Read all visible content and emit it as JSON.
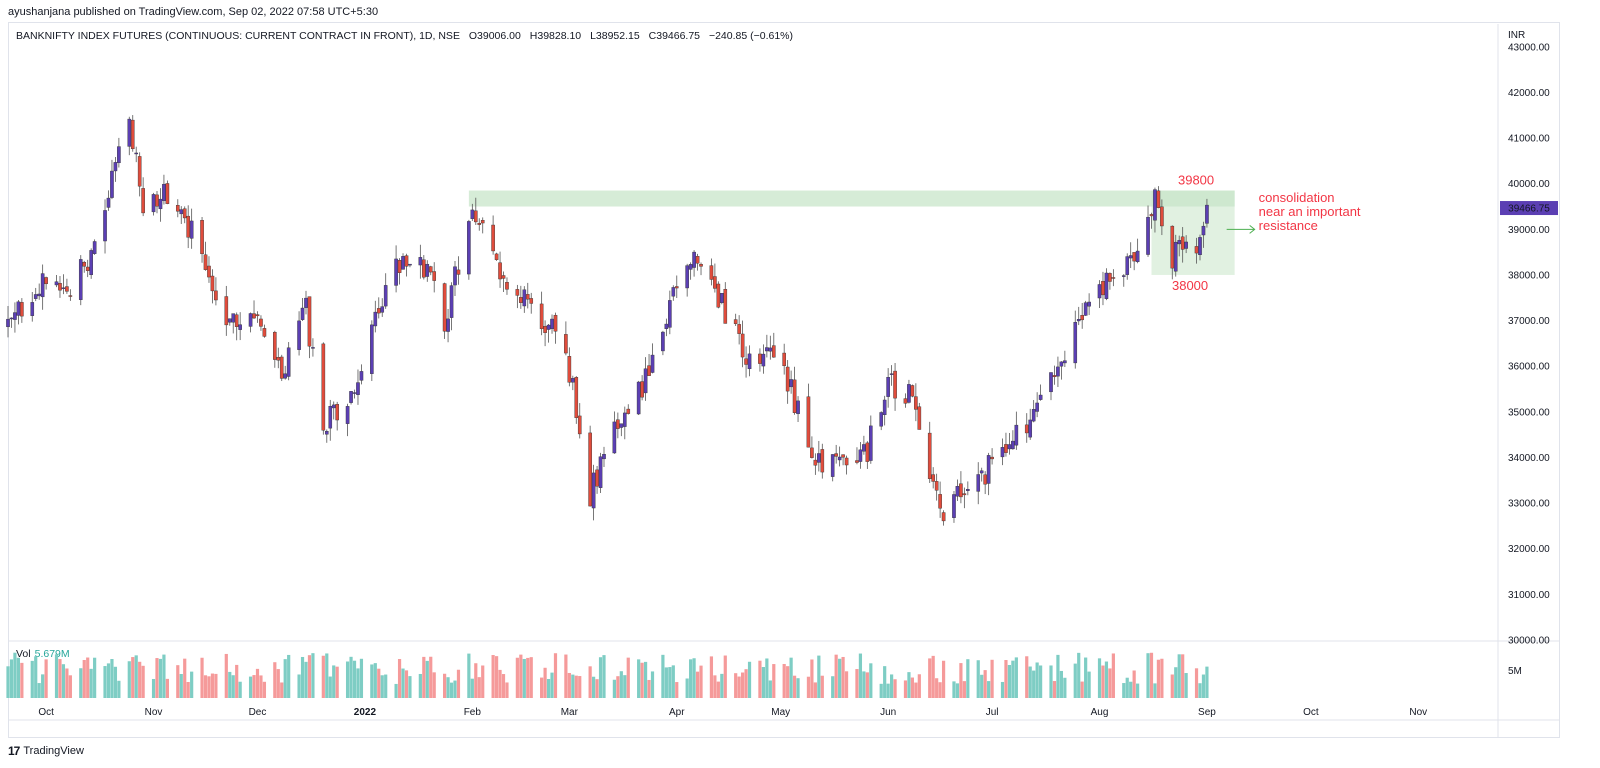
{
  "publisher": "ayushanjana published on TradingView.com, Sep 02, 2022 07:58 UTC+5:30",
  "legend": {
    "symbol": "BANKNIFTY INDEX FUTURES (CONTINUOUS: CURRENT CONTRACT IN FRONT), 1D, NSE",
    "open": "O39006.00",
    "high": "H39828.10",
    "low": "L38952.15",
    "close": "C39466.75",
    "change": "−240.85 (−0.61%)"
  },
  "volume": {
    "label": "Vol",
    "value": "5.679M"
  },
  "footer": {
    "brand": "TradingView"
  },
  "chart_data": {
    "type": "candlestick",
    "currency": "INR",
    "colors": {
      "up": "#5b3fb3",
      "down": "#e04c3c",
      "vol_up": "#7ecdc4",
      "vol_down": "#f59a9a",
      "zone": "#c8e6c9"
    },
    "ylim": [
      30000,
      43500
    ],
    "y_ticks": [
      "30000.00",
      "31000.00",
      "32000.00",
      "33000.00",
      "34000.00",
      "35000.00",
      "36000.00",
      "37000.00",
      "38000.00",
      "39000.00",
      "40000.00",
      "41000.00",
      "42000.00",
      "43000.00"
    ],
    "last_price": "39466.75",
    "vol_tick": "5M",
    "x_ticks": [
      "Oct",
      "Nov",
      "Dec",
      "2022",
      "Feb",
      "Mar",
      "Apr",
      "May",
      "Jun",
      "Jul",
      "Aug",
      "Sep",
      "Oct",
      "Nov"
    ],
    "x_tick_dates": [
      "2021-10-01",
      "2021-11-01",
      "2021-12-01",
      "2022-01-01",
      "2022-02-01",
      "2022-03-01",
      "2022-04-01",
      "2022-05-01",
      "2022-06-01",
      "2022-07-01",
      "2022-08-01",
      "2022-09-01",
      "2022-10-01",
      "2022-11-01"
    ],
    "resistance_zone": {
      "from": 39500,
      "to": 39850,
      "start": "2022-01-31",
      "end": "2022-09-09"
    },
    "consolidation_box": {
      "from": 38000,
      "to": 39850,
      "start": "2022-08-16",
      "end": "2022-09-09"
    },
    "annotations": {
      "top": "39800",
      "bottom": "38000",
      "note": [
        "consolidation",
        "near an important",
        "resistance"
      ]
    },
    "anchors": [
      {
        "date": "2021-09-20",
        "price": 36800
      },
      {
        "date": "2021-09-28",
        "price": 37800
      },
      {
        "date": "2021-10-05",
        "price": 37600
      },
      {
        "date": "2021-10-14",
        "price": 38300
      },
      {
        "date": "2021-10-19",
        "price": 39700
      },
      {
        "date": "2021-10-25",
        "price": 41600
      },
      {
        "date": "2021-10-29",
        "price": 39300
      },
      {
        "date": "2021-11-04",
        "price": 39800
      },
      {
        "date": "2021-11-12",
        "price": 38900
      },
      {
        "date": "2021-11-22",
        "price": 37200
      },
      {
        "date": "2021-11-30",
        "price": 37000
      },
      {
        "date": "2021-12-08",
        "price": 35800
      },
      {
        "date": "2021-12-15",
        "price": 37200
      },
      {
        "date": "2021-12-20",
        "price": 34700
      },
      {
        "date": "2021-12-28",
        "price": 35200
      },
      {
        "date": "2022-01-05",
        "price": 37300
      },
      {
        "date": "2022-01-12",
        "price": 38500
      },
      {
        "date": "2022-01-18",
        "price": 38200
      },
      {
        "date": "2022-01-24",
        "price": 37000
      },
      {
        "date": "2022-02-01",
        "price": 39400
      },
      {
        "date": "2022-02-08",
        "price": 38200
      },
      {
        "date": "2022-02-15",
        "price": 37500
      },
      {
        "date": "2022-02-24",
        "price": 36800
      },
      {
        "date": "2022-03-02",
        "price": 35600
      },
      {
        "date": "2022-03-07",
        "price": 33200
      },
      {
        "date": "2022-03-15",
        "price": 34800
      },
      {
        "date": "2022-03-24",
        "price": 35800
      },
      {
        "date": "2022-04-04",
        "price": 38500
      },
      {
        "date": "2022-04-11",
        "price": 37800
      },
      {
        "date": "2022-04-20",
        "price": 36300
      },
      {
        "date": "2022-04-29",
        "price": 36200
      },
      {
        "date": "2022-05-06",
        "price": 35100
      },
      {
        "date": "2022-05-12",
        "price": 33800
      },
      {
        "date": "2022-05-19",
        "price": 34000
      },
      {
        "date": "2022-05-26",
        "price": 34200
      },
      {
        "date": "2022-06-01",
        "price": 35600
      },
      {
        "date": "2022-06-09",
        "price": 35300
      },
      {
        "date": "2022-06-13",
        "price": 33500
      },
      {
        "date": "2022-06-17",
        "price": 32800
      },
      {
        "date": "2022-06-27",
        "price": 33500
      },
      {
        "date": "2022-07-05",
        "price": 34200
      },
      {
        "date": "2022-07-14",
        "price": 35000
      },
      {
        "date": "2022-07-22",
        "price": 36200
      },
      {
        "date": "2022-07-29",
        "price": 37400
      },
      {
        "date": "2022-08-05",
        "price": 37900
      },
      {
        "date": "2022-08-12",
        "price": 38500
      },
      {
        "date": "2022-08-17",
        "price": 39600
      },
      {
        "date": "2022-08-22",
        "price": 38400
      },
      {
        "date": "2022-08-26",
        "price": 39000
      },
      {
        "date": "2022-08-29",
        "price": 38200
      },
      {
        "date": "2022-09-01",
        "price": 39466
      }
    ],
    "volume_range": [
      0,
      8000000
    ]
  }
}
